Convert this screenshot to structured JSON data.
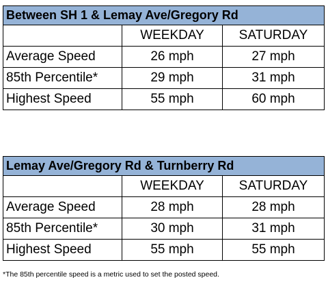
{
  "tables": [
    {
      "title": "Between SH 1 & Lemay Ave/Gregory Rd",
      "header": [
        "",
        "WEEKDAY",
        "SATURDAY"
      ],
      "rows": [
        [
          "Average Speed",
          "26 mph",
          "27 mph"
        ],
        [
          "85th Percentile*",
          "29 mph",
          "31 mph"
        ],
        [
          "Highest Speed",
          "55 mph",
          "60 mph"
        ]
      ]
    },
    {
      "title": "Lemay Ave/Gregory Rd & Turnberry Rd",
      "header": [
        "",
        "WEEKDAY",
        "SATURDAY"
      ],
      "rows": [
        [
          "Average Speed",
          "28 mph",
          "28 mph"
        ],
        [
          "85th Percentile*",
          "30 mph",
          "31 mph"
        ],
        [
          "Highest Speed",
          "55 mph",
          "55 mph"
        ]
      ]
    }
  ],
  "footnote": "*The 85th percentile speed is a metric used to set the posted speed."
}
